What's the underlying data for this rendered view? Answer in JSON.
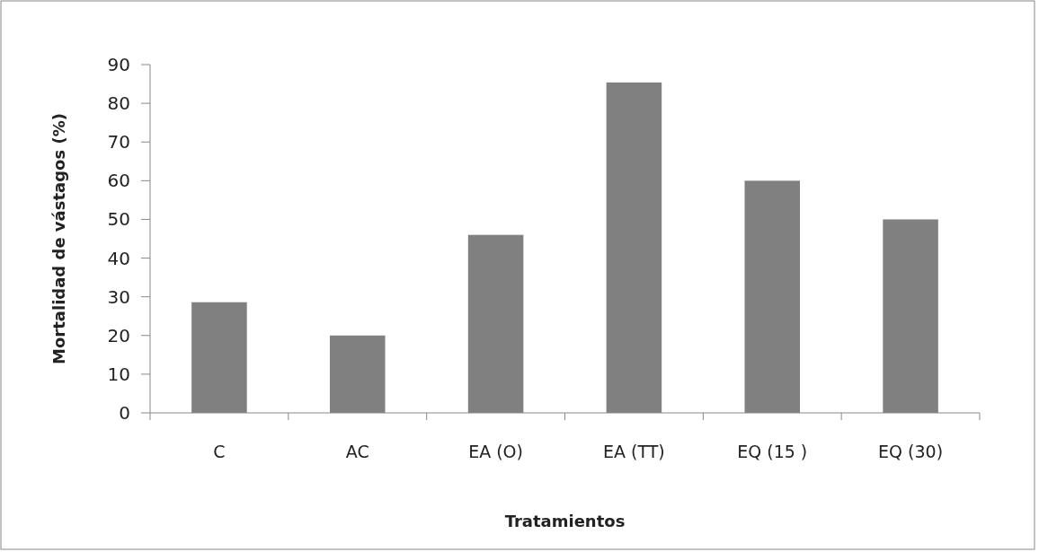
{
  "chart_data": {
    "type": "bar",
    "xlabel": "Tratamientos",
    "ylabel": "Mortalidad de vástagos (%)",
    "categories": [
      "C",
      "AC",
      "EA (O)",
      "EA (TT)",
      "EQ (15 )",
      "EQ (30)"
    ],
    "values": [
      28.6,
      20,
      46,
      85.4,
      60,
      50
    ],
    "color": "#808080",
    "ylim": [
      0,
      90
    ],
    "yticks": [
      0,
      10,
      20,
      30,
      40,
      50,
      60,
      70,
      80,
      90
    ]
  }
}
